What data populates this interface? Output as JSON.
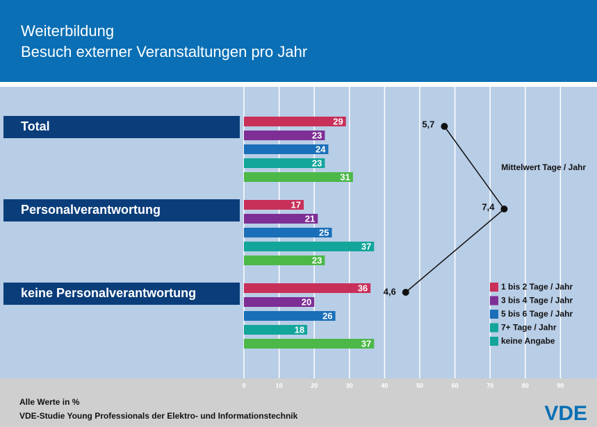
{
  "chart_data": {
    "type": "bar",
    "title": "Weiterbildung",
    "subtitle": "Besuch externer Veranstaltungen pro Jahr",
    "categories": [
      "Total",
      "Personalverantwortung",
      "keine Personalverantwortung"
    ],
    "series": [
      {
        "name": "1 bis 2 Tage / Jahr",
        "color": "#c8305a",
        "values": [
          29,
          17,
          36
        ]
      },
      {
        "name": "3 bis 4 Tage / Jahr",
        "color": "#7e2f95",
        "values": [
          23,
          21,
          20
        ]
      },
      {
        "name": "5 bis 6 Tage / Jahr",
        "color": "#1a6fb8",
        "values": [
          24,
          25,
          26
        ]
      },
      {
        "name": "7+ Tage / Jahr",
        "color": "#13a59a",
        "values": [
          23,
          37,
          18
        ]
      },
      {
        "name": "keine Angabe",
        "color": "#4cb848",
        "values": [
          31,
          23,
          37
        ]
      }
    ],
    "legend_colors": [
      "#c8305a",
      "#7e2f95",
      "#1a6fb8",
      "#13a59a",
      "#13a59a"
    ],
    "xlim": [
      0,
      100
    ],
    "xticks": [
      0,
      10,
      20,
      30,
      40,
      50,
      60,
      70,
      80,
      90
    ],
    "grid": true,
    "mean": {
      "name": "Mittelwert Tage / Jahr",
      "values": [
        5.7,
        7.4,
        4.6
      ],
      "value_labels": [
        "5,7",
        "7,4",
        "4,6"
      ],
      "xlim": [
        0,
        10
      ]
    },
    "note": "Alle Werte in %",
    "source": "VDE-Studie Young Professionals der Elektro- und Informationstechnik",
    "logo": "VDE"
  }
}
